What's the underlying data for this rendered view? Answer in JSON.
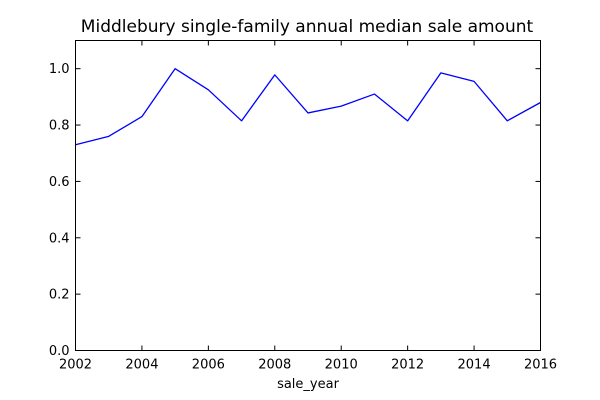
{
  "chart_data": {
    "type": "line",
    "title": "Middlebury single-family annual median sale amount",
    "xlabel": "sale_year",
    "ylabel": "",
    "xlim": [
      2002,
      2016
    ],
    "ylim": [
      0.0,
      1.1
    ],
    "x_ticks": [
      2002,
      2004,
      2006,
      2008,
      2010,
      2012,
      2014,
      2016
    ],
    "x_tick_labels": [
      "2002",
      "2004",
      "2006",
      "2008",
      "2010",
      "2012",
      "2014",
      "2016"
    ],
    "y_ticks": [
      0.0,
      0.2,
      0.4,
      0.6,
      0.8,
      1.0
    ],
    "y_tick_labels": [
      "0.0",
      "0.2",
      "0.4",
      "0.6",
      "0.8",
      "1.0"
    ],
    "grid": false,
    "line_color": "#0000ff",
    "x": [
      2002,
      2003,
      2004,
      2005,
      2006,
      2007,
      2008,
      2009,
      2010,
      2011,
      2012,
      2013,
      2014,
      2015,
      2016
    ],
    "series": [
      {
        "values": [
          0.73,
          0.76,
          0.83,
          1.0,
          0.925,
          0.815,
          0.978,
          0.843,
          0.867,
          0.91,
          0.815,
          0.985,
          0.955,
          0.815,
          0.88
        ]
      }
    ]
  }
}
